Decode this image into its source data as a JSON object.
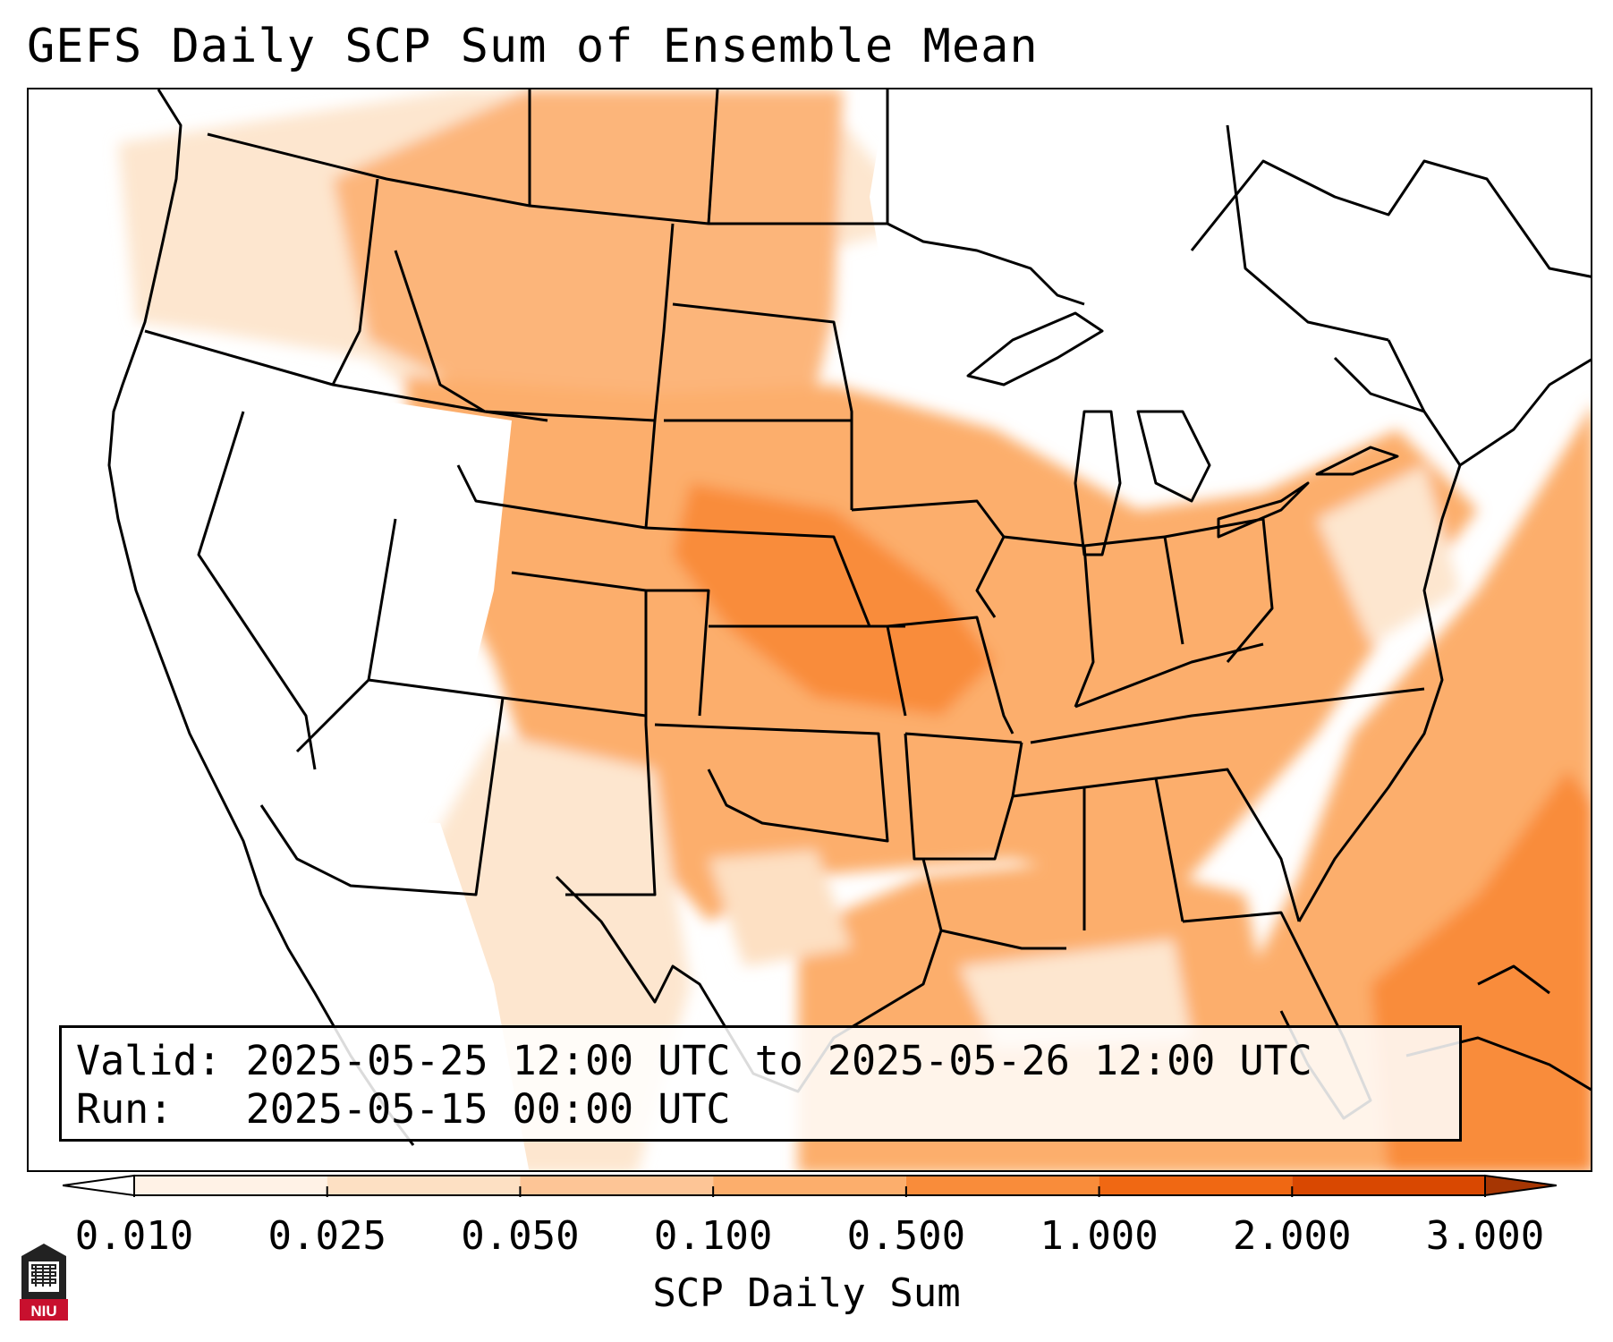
{
  "title": "GEFS Daily SCP Sum of Ensemble Mean",
  "info": {
    "valid_label": "Valid:",
    "valid_value": "2025-05-25 12:00 UTC to 2025-05-26 12:00 UTC",
    "run_label": "Run:",
    "run_value": "2025-05-15 00:00 UTC"
  },
  "colorbar": {
    "label": "SCP Daily Sum",
    "ticks": [
      "0.010",
      "0.025",
      "0.050",
      "0.100",
      "0.500",
      "1.000",
      "2.000",
      "3.000"
    ],
    "colors": [
      "#fff2e6",
      "#fde0c3",
      "#fdc596",
      "#fcae6c",
      "#f98c3a",
      "#f06813",
      "#d94801",
      "#a63603"
    ],
    "under_color": "#ffffff",
    "over_color": "#a63603"
  },
  "logo": {
    "text": "NIU",
    "color": "#c8102e"
  }
}
